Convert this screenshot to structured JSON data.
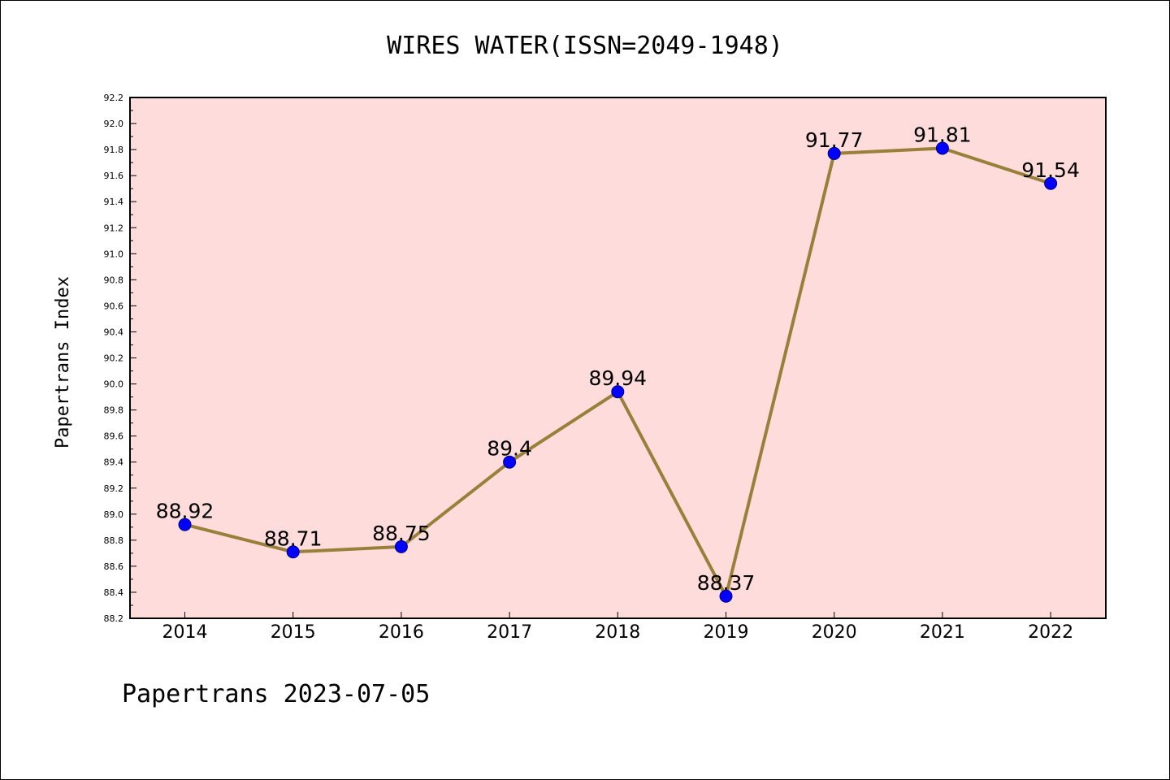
{
  "footer": "Papertrans 2023-07-05",
  "chart_data": {
    "type": "line",
    "title": "WIRES WATER(ISSN=2049-1948)",
    "xlabel": "",
    "ylabel": "Papertrans Index",
    "categories": [
      "2014",
      "2015",
      "2016",
      "2017",
      "2018",
      "2019",
      "2020",
      "2021",
      "2022"
    ],
    "values": [
      88.92,
      88.71,
      88.75,
      89.4,
      89.94,
      88.37,
      91.77,
      91.81,
      91.54
    ],
    "data_labels": [
      "88.92",
      "88.71",
      "88.75",
      "89.4",
      "89.94",
      "88.37",
      "91.77",
      "91.81",
      "91.54"
    ],
    "ylim": [
      88.2,
      92.2
    ],
    "yticks": [
      "88.2",
      "88.4",
      "88.6",
      "88.8",
      "89.0",
      "89.2",
      "89.4",
      "89.6",
      "89.8",
      "90.0",
      "90.2",
      "90.4",
      "90.6",
      "90.8",
      "91.0",
      "91.2",
      "91.4",
      "91.6",
      "91.8",
      "92.0",
      "92.2"
    ],
    "grid": false,
    "legend": "none",
    "colors": {
      "plot_background": "#fddcdb",
      "line": "#9a7f3a",
      "marker": "#0000ff"
    }
  }
}
